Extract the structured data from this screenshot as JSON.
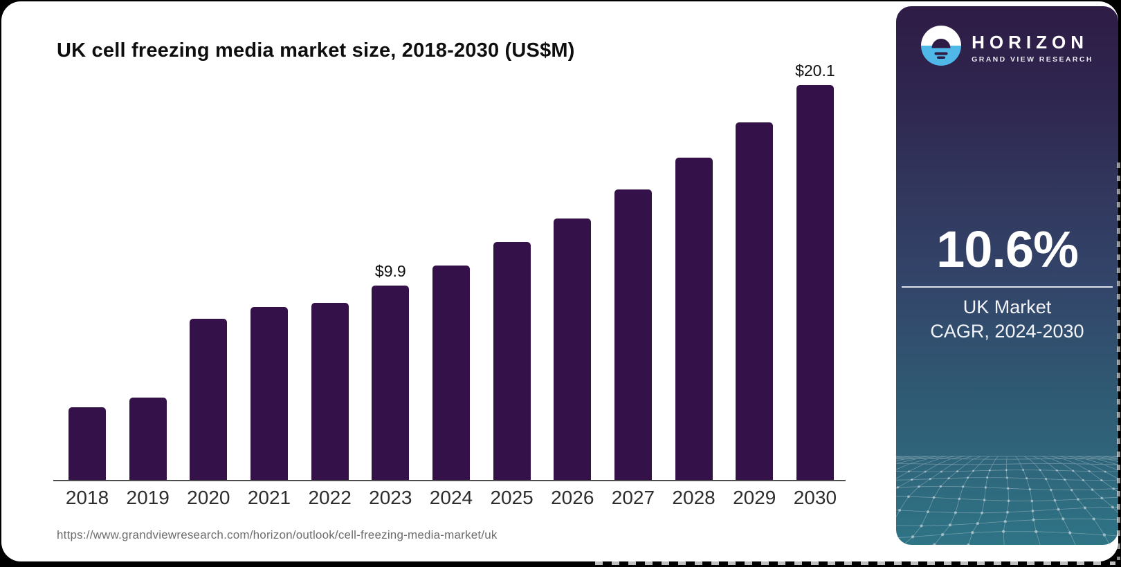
{
  "page": {
    "frame_color": "#000000",
    "card_color": "#ffffff"
  },
  "header": {
    "title": "UK cell freezing media market size, 2018-2030 (US$M)"
  },
  "footer": {
    "source_url": "https://www.grandviewresearch.com/horizon/outlook/cell-freezing-media-market/uk"
  },
  "chart_data": {
    "type": "bar",
    "title": "UK cell freezing media market size, 2018-2030 (US$M)",
    "unit": "US$M",
    "categories": [
      "2018",
      "2019",
      "2020",
      "2021",
      "2022",
      "2023",
      "2024",
      "2025",
      "2026",
      "2027",
      "2028",
      "2029",
      "2030"
    ],
    "values": [
      3.7,
      4.2,
      8.2,
      8.8,
      9.0,
      9.9,
      10.9,
      12.1,
      13.3,
      14.8,
      16.4,
      18.2,
      20.1
    ],
    "data_labels": {
      "2023": "$9.9",
      "2030": "$20.1"
    },
    "bar_color": "#341249",
    "axis": {
      "x_labels_shown": true,
      "y_axis_shown": false,
      "grid": false,
      "ylim": [
        0,
        20.1
      ]
    },
    "legend": "none"
  },
  "sidebar": {
    "brand": {
      "name": "HORIZON",
      "tagline": "GRAND VIEW RESEARCH"
    },
    "stat": {
      "value": "10.6%",
      "caption_line1": "UK Market",
      "caption_line2": "CAGR, 2024-2030"
    },
    "colors": {
      "gradient_top": "#2E1C45",
      "gradient_middle": "#33456A",
      "gradient_bottom": "#2F7486",
      "logo_blue": "#4FB8E8",
      "logo_dark": "#2E1C45"
    }
  }
}
